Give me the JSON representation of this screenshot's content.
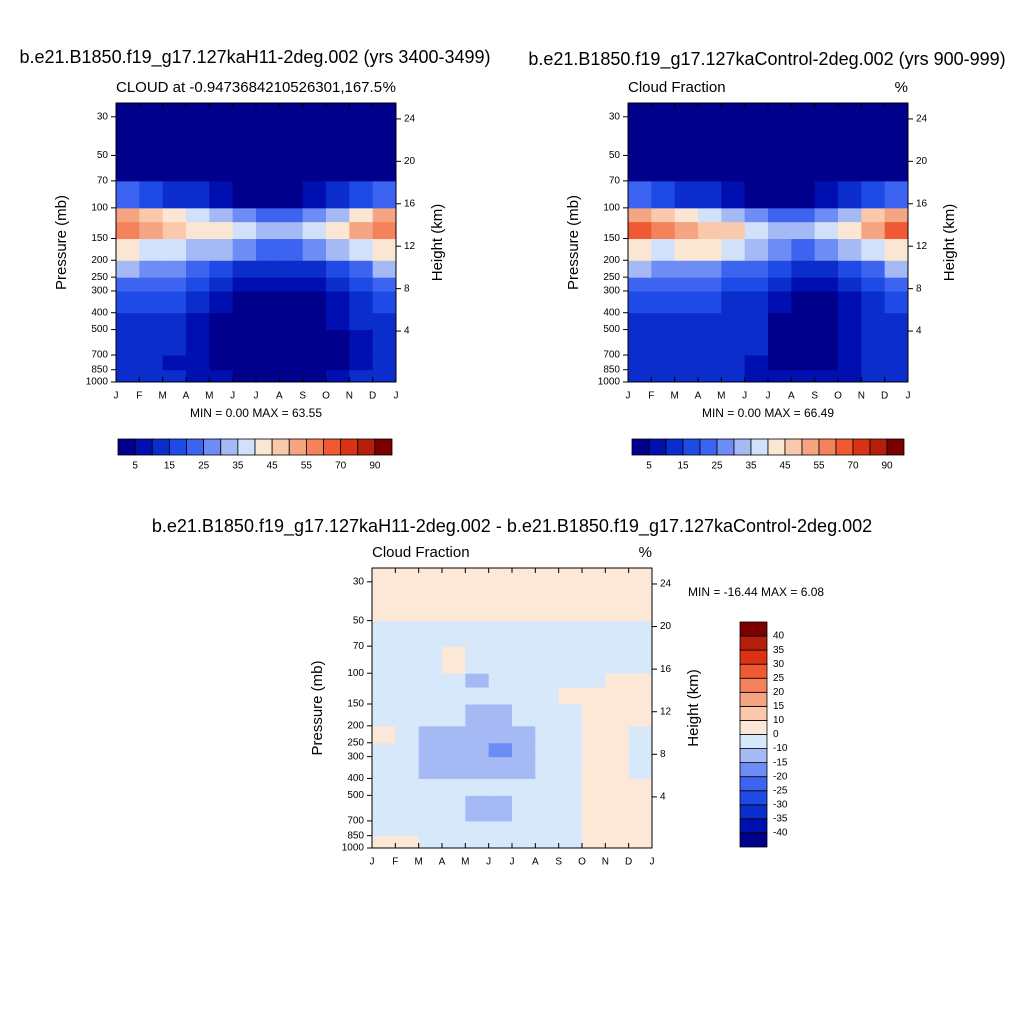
{
  "chart_data": [
    {
      "type": "contour",
      "title": "b.e21.B1850.f19_g17.127kaH11-2deg.002 (yrs 3400-3499)",
      "subtitle_left": "CLOUD at -0.9473684210526301,167.5",
      "subtitle_right": "%",
      "stats": "MIN =   0.00 MAX =  63.55",
      "ylabel": "Pressure (mb)",
      "y2label": "Height (km)",
      "ylog": true,
      "categories": [
        "J",
        "F",
        "M",
        "A",
        "M",
        "J",
        "J",
        "A",
        "S",
        "O",
        "N",
        "D",
        "J"
      ],
      "ylim": [
        1000,
        25
      ],
      "yticks": [
        30,
        50,
        70,
        100,
        150,
        200,
        250,
        300,
        400,
        500,
        700,
        850,
        1000
      ],
      "y2lim": [
        -0.8,
        25.5
      ],
      "y2ticks": [
        4,
        8,
        12,
        16,
        20,
        24
      ],
      "colorbar_orientation": "horizontal",
      "colorbar_label_every": 2,
      "levels": [
        5,
        10,
        15,
        20,
        25,
        30,
        35,
        40,
        45,
        50,
        55,
        60,
        70,
        80,
        90
      ],
      "colors": [
        "#00008c",
        "#0010b0",
        "#0a2dcb",
        "#1e4be6",
        "#3c64f0",
        "#6e8cf5",
        "#a5b9f5",
        "#d2e1fa",
        "#fae6d2",
        "#fac8aa",
        "#f5a582",
        "#f5825a",
        "#f05a32",
        "#dc3214",
        "#b41e0a",
        "#7d0000"
      ],
      "y_edges": [
        1000,
        850,
        700,
        500,
        400,
        300,
        250,
        200,
        150,
        120,
        100,
        70,
        50,
        25
      ],
      "z": [
        [
          12,
          12,
          10,
          8,
          6,
          4,
          4,
          4,
          4,
          6,
          10,
          12
        ],
        [
          10,
          10,
          8,
          6,
          3,
          2,
          2,
          2,
          2,
          4,
          8,
          10
        ],
        [
          12,
          12,
          10,
          7,
          3,
          2,
          2,
          2,
          2,
          4,
          9,
          12
        ],
        [
          14,
          14,
          12,
          9,
          4,
          3,
          3,
          3,
          3,
          5,
          11,
          14
        ],
        [
          18,
          18,
          16,
          12,
          8,
          4,
          4,
          4,
          4,
          8,
          14,
          18
        ],
        [
          24,
          22,
          20,
          16,
          12,
          8,
          7,
          7,
          8,
          12,
          18,
          24
        ],
        [
          30,
          28,
          26,
          22,
          18,
          14,
          12,
          12,
          14,
          18,
          24,
          30
        ],
        [
          40,
          38,
          36,
          34,
          30,
          26,
          24,
          24,
          26,
          30,
          36,
          40
        ],
        [
          58,
          54,
          45,
          42,
          40,
          36,
          34,
          34,
          36,
          40,
          50,
          58
        ],
        [
          50,
          46,
          40,
          36,
          32,
          28,
          24,
          24,
          28,
          34,
          44,
          50
        ],
        [
          20,
          18,
          14,
          10,
          6,
          4,
          4,
          4,
          6,
          10,
          16,
          20
        ],
        [
          1,
          1,
          1,
          1,
          1,
          1,
          1,
          1,
          1,
          1,
          1,
          1
        ],
        [
          0,
          0,
          0,
          0,
          0,
          0,
          0,
          0,
          0,
          0,
          0,
          0
        ]
      ]
    },
    {
      "type": "contour",
      "title": "b.e21.B1850.f19_g17.127kaControl-2deg.002 (yrs 900-999)",
      "subtitle_left": "Cloud Fraction",
      "subtitle_right": "%",
      "stats": "MIN =   0.00 MAX =  66.49",
      "ylabel": "Pressure (mb)",
      "y2label": "Height (km)",
      "ylog": true,
      "categories": [
        "J",
        "F",
        "M",
        "A",
        "M",
        "J",
        "J",
        "A",
        "S",
        "O",
        "N",
        "D",
        "J"
      ],
      "ylim": [
        1000,
        25
      ],
      "yticks": [
        30,
        50,
        70,
        100,
        150,
        200,
        250,
        300,
        400,
        500,
        700,
        850,
        1000
      ],
      "y2lim": [
        -0.8,
        25.5
      ],
      "y2ticks": [
        4,
        8,
        12,
        16,
        20,
        24
      ],
      "colorbar_orientation": "horizontal",
      "colorbar_label_every": 2,
      "levels": [
        5,
        10,
        15,
        20,
        25,
        30,
        35,
        40,
        45,
        50,
        55,
        60,
        70,
        80,
        90
      ],
      "colors": [
        "#00008c",
        "#0010b0",
        "#0a2dcb",
        "#1e4be6",
        "#3c64f0",
        "#6e8cf5",
        "#a5b9f5",
        "#d2e1fa",
        "#fae6d2",
        "#fac8aa",
        "#f5a582",
        "#f5825a",
        "#f05a32",
        "#dc3214",
        "#b41e0a",
        "#7d0000"
      ],
      "y_edges": [
        1000,
        850,
        700,
        500,
        400,
        300,
        250,
        200,
        150,
        120,
        100,
        70,
        50,
        25
      ],
      "z": [
        [
          14,
          14,
          12,
          12,
          10,
          8,
          6,
          6,
          6,
          8,
          12,
          14
        ],
        [
          12,
          12,
          12,
          12,
          10,
          8,
          4,
          3,
          3,
          6,
          10,
          12
        ],
        [
          12,
          12,
          12,
          12,
          12,
          10,
          4,
          3,
          3,
          6,
          10,
          12
        ],
        [
          14,
          14,
          14,
          14,
          12,
          10,
          4,
          3,
          3,
          6,
          12,
          14
        ],
        [
          18,
          18,
          18,
          16,
          14,
          12,
          8,
          4,
          4,
          8,
          14,
          18
        ],
        [
          24,
          22,
          22,
          20,
          18,
          16,
          12,
          8,
          8,
          12,
          18,
          24
        ],
        [
          30,
          28,
          28,
          26,
          24,
          20,
          16,
          12,
          14,
          18,
          24,
          30
        ],
        [
          40,
          38,
          40,
          40,
          38,
          30,
          26,
          24,
          26,
          30,
          36,
          40
        ],
        [
          60,
          56,
          50,
          48,
          46,
          38,
          34,
          34,
          36,
          40,
          52,
          60
        ],
        [
          52,
          48,
          42,
          38,
          34,
          28,
          24,
          24,
          28,
          34,
          46,
          52
        ],
        [
          20,
          18,
          14,
          10,
          6,
          4,
          4,
          4,
          6,
          10,
          16,
          20
        ],
        [
          1,
          1,
          1,
          1,
          1,
          1,
          1,
          1,
          1,
          1,
          1,
          1
        ],
        [
          0,
          0,
          0,
          0,
          0,
          0,
          0,
          0,
          0,
          0,
          0,
          0
        ]
      ]
    },
    {
      "type": "contour",
      "title": "b.e21.B1850.f19_g17.127kaH11-2deg.002 - b.e21.B1850.f19_g17.127kaControl-2deg.002",
      "subtitle_left": "Cloud Fraction",
      "subtitle_right": "%",
      "stats": "MIN = -16.44 MAX =   6.08",
      "ylabel": "Pressure (mb)",
      "y2label": "Height (km)",
      "ylog": true,
      "categories": [
        "J",
        "F",
        "M",
        "A",
        "M",
        "J",
        "J",
        "A",
        "S",
        "O",
        "N",
        "D",
        "J"
      ],
      "ylim": [
        1000,
        25
      ],
      "yticks": [
        30,
        50,
        70,
        100,
        150,
        200,
        250,
        300,
        400,
        500,
        700,
        850,
        1000
      ],
      "y2lim": [
        -0.8,
        25.5
      ],
      "y2ticks": [
        4,
        8,
        12,
        16,
        20,
        24
      ],
      "colorbar_orientation": "vertical",
      "colorbar_label_every": 1,
      "levels": [
        -40,
        -35,
        -30,
        -25,
        -20,
        -15,
        -10,
        0,
        10,
        15,
        20,
        25,
        30,
        35,
        40
      ],
      "colors": [
        "#00008c",
        "#0010b0",
        "#0a2dcb",
        "#1e4be6",
        "#3c64f0",
        "#6e8cf5",
        "#a5b9f5",
        "#d7e8fa",
        "#fde8d8",
        "#fac8aa",
        "#f5a582",
        "#f5825a",
        "#f05a32",
        "#dc3214",
        "#b41e0a",
        "#7d0000"
      ],
      "y_edges": [
        1000,
        850,
        700,
        500,
        400,
        300,
        250,
        200,
        150,
        120,
        100,
        70,
        50,
        25
      ],
      "z": [
        [
          2,
          2,
          -2,
          -2,
          -2,
          -2,
          -2,
          -2,
          -2,
          2,
          2,
          2
        ],
        [
          -2,
          -2,
          -2,
          -2,
          -2,
          -2,
          -2,
          -2,
          -2,
          2,
          2,
          2
        ],
        [
          -2,
          -2,
          -2,
          -2,
          -11,
          -11,
          -2,
          -2,
          -2,
          2,
          2,
          2
        ],
        [
          -2,
          -2,
          -2,
          -2,
          -2,
          -2,
          -2,
          -2,
          -2,
          2,
          2,
          2
        ],
        [
          -2,
          -2,
          -11,
          -11,
          -12,
          -12,
          -11,
          -2,
          -2,
          2,
          2,
          -2
        ],
        [
          -2,
          -2,
          -11,
          -12,
          -13,
          -16,
          -11,
          -2,
          -2,
          2,
          2,
          -2
        ],
        [
          2,
          -2,
          -11,
          -11,
          -12,
          -12,
          -11,
          -2,
          -2,
          2,
          2,
          -2
        ],
        [
          -2,
          -2,
          -2,
          -2,
          -11,
          -11,
          -2,
          -2,
          -2,
          2,
          2,
          2
        ],
        [
          -2,
          -2,
          -2,
          -2,
          -2,
          -2,
          -2,
          -2,
          2,
          2,
          2,
          2
        ],
        [
          -2,
          -2,
          -2,
          -2,
          -11,
          -2,
          -2,
          -2,
          -2,
          -2,
          2,
          2
        ],
        [
          -2,
          -2,
          -2,
          2,
          -2,
          -2,
          -2,
          -2,
          -2,
          -2,
          -2,
          -2
        ],
        [
          -2,
          -2,
          -2,
          -2,
          -2,
          -2,
          -2,
          -2,
          -2,
          -2,
          -2,
          -2
        ],
        [
          2,
          2,
          2,
          2,
          2,
          2,
          2,
          2,
          2,
          2,
          2,
          2
        ]
      ]
    }
  ]
}
